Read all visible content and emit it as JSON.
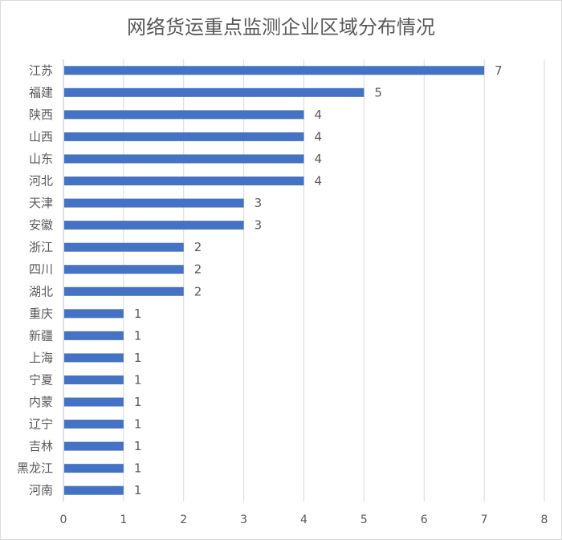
{
  "chart_data": {
    "type": "bar",
    "orientation": "horizontal",
    "title": "网络货运重点监测企业区域分布情况",
    "categories": [
      "江苏",
      "福建",
      "陕西",
      "山西",
      "山东",
      "河北",
      "天津",
      "安徽",
      "浙江",
      "四川",
      "湖北",
      "重庆",
      "新疆",
      "上海",
      "宁夏",
      "内蒙",
      "辽宁",
      "吉林",
      "黑龙江",
      "河南"
    ],
    "values": [
      7,
      5,
      4,
      4,
      4,
      4,
      3,
      3,
      2,
      2,
      2,
      1,
      1,
      1,
      1,
      1,
      1,
      1,
      1,
      1
    ],
    "xlim": [
      0,
      8
    ],
    "xticks": [
      "0",
      "1",
      "2",
      "3",
      "4",
      "5",
      "6",
      "7",
      "8"
    ],
    "grid": true,
    "data_labels": true,
    "bar_color": "#4472c4",
    "grid_color": "#d9d9d9"
  }
}
